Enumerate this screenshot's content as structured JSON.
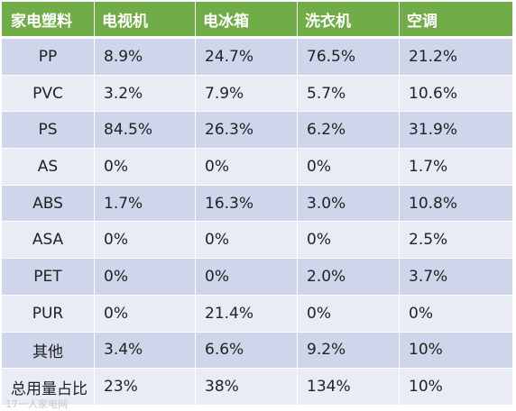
{
  "table": {
    "headers": [
      "家电塑料",
      "电视机",
      "电冰箱",
      "洗衣机",
      "空调"
    ],
    "rows": [
      [
        "PP",
        "8.9%",
        "24.7%",
        "76.5%",
        "21.2%"
      ],
      [
        "PVC",
        "3.2%",
        "7.9%",
        "5.7%",
        "10.6%"
      ],
      [
        "PS",
        "84.5%",
        "26.3%",
        "6.2%",
        "31.9%"
      ],
      [
        "AS",
        "0%",
        "0%",
        "0%",
        "1.7%"
      ],
      [
        "ABS",
        "1.7%",
        "16.3%",
        "3.0%",
        "10.8%"
      ],
      [
        "ASA",
        "0%",
        "0%",
        "0%",
        "2.5%"
      ],
      [
        "PET",
        "0%",
        "0%",
        "2.0%",
        "3.7%"
      ],
      [
        "PUR",
        "0%",
        "21.4%",
        "0%",
        "0%"
      ],
      [
        "其他",
        "3.4%",
        "6.6%",
        "9.2%",
        "10%"
      ],
      [
        "总用量占比",
        "23%",
        "38%",
        "134%",
        "10%"
      ]
    ]
  },
  "colors": {
    "header_bg": "#70ad47",
    "row_odd_bg": "#cfd5ea",
    "row_even_bg": "#e9ebf5"
  },
  "watermark": "17一人家电网"
}
